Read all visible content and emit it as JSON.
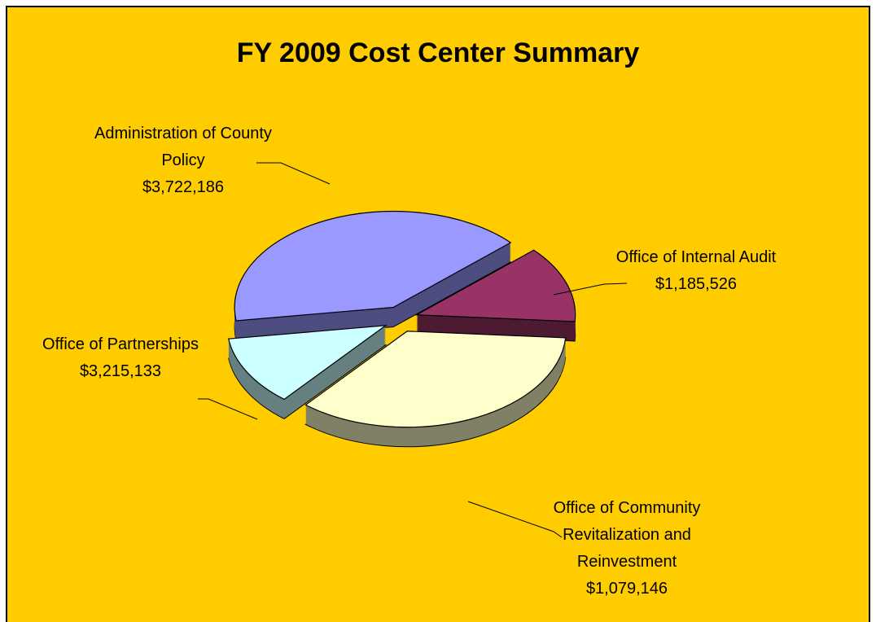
{
  "chart_data": {
    "type": "pie",
    "title": "FY 2009 Cost Center Summary",
    "categories": [
      "Administration of County Policy",
      "Office of Internal Audit",
      "Office of Partnerships",
      "Office of Community Revitalization and Reinvestment"
    ],
    "values": [
      3722186,
      1185526,
      3215133,
      1079146
    ],
    "value_labels": [
      "$3,722,186",
      "$1,185,526",
      "$3,215,133",
      "$1,079,146"
    ],
    "colors": [
      "#9999FF",
      "#993366",
      "#FFFFCC",
      "#CCFFFF"
    ],
    "background": "#FFCC00"
  }
}
